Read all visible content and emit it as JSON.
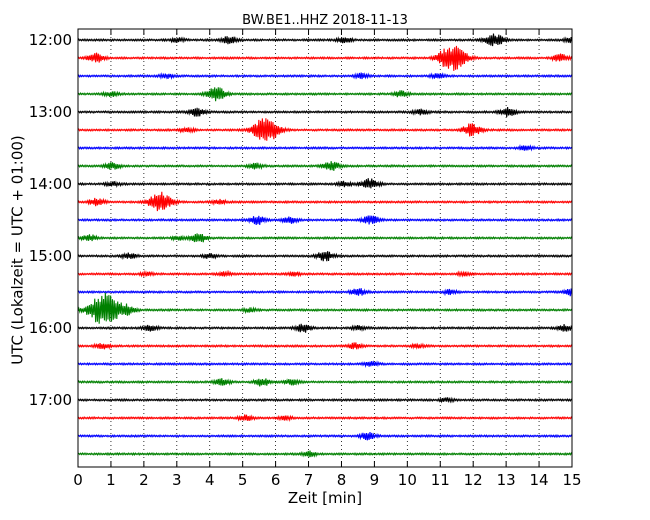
{
  "chart_data": {
    "type": "line",
    "title": "BW.BE1..HHZ 2018-11-13",
    "xlabel": "Zeit  [min]",
    "ylabel": "UTC (Lokalzeit = UTC + 01:00)",
    "xlim": [
      0,
      15
    ],
    "x_ticks": [
      "0",
      "1",
      "2",
      "3",
      "4",
      "5",
      "6",
      "7",
      "8",
      "9",
      "10",
      "11",
      "12",
      "13",
      "14",
      "15"
    ],
    "y_tick_labels": [
      "12:00",
      "13:00",
      "14:00",
      "15:00",
      "16:00",
      "17:00"
    ],
    "grid": "vertical dotted",
    "trace_interval_minutes": 15,
    "color_cycle": [
      "#000000",
      "#ff0000",
      "#0000ff",
      "#008000"
    ],
    "traces": [
      {
        "start": "12:00",
        "events": [
          [
            3.0,
            0.25
          ],
          [
            4.6,
            0.4
          ],
          [
            8.1,
            0.3
          ],
          [
            12.65,
            0.7
          ],
          [
            15.0,
            0.3
          ]
        ]
      },
      {
        "start": "12:15",
        "events": [
          [
            0.55,
            0.5
          ],
          [
            11.45,
            1.3
          ],
          [
            11.1,
            0.5
          ],
          [
            14.65,
            0.4
          ]
        ]
      },
      {
        "start": "12:30",
        "events": [
          [
            2.7,
            0.25
          ],
          [
            8.6,
            0.3
          ],
          [
            10.9,
            0.25
          ]
        ]
      },
      {
        "start": "12:45",
        "events": [
          [
            4.2,
            0.75
          ],
          [
            9.8,
            0.35
          ],
          [
            1.0,
            0.25
          ]
        ]
      },
      {
        "start": "13:00",
        "events": [
          [
            3.6,
            0.45
          ],
          [
            10.4,
            0.3
          ],
          [
            13.05,
            0.5
          ]
        ]
      },
      {
        "start": "13:15",
        "events": [
          [
            5.7,
            1.45
          ],
          [
            11.95,
            0.7
          ],
          [
            3.3,
            0.25
          ]
        ]
      },
      {
        "start": "13:30",
        "events": [
          [
            13.6,
            0.3
          ]
        ]
      },
      {
        "start": "13:45",
        "events": [
          [
            7.7,
            0.5
          ],
          [
            1.05,
            0.35
          ],
          [
            5.4,
            0.3
          ]
        ]
      },
      {
        "start": "14:00",
        "events": [
          [
            8.85,
            0.6
          ],
          [
            8.1,
            0.3
          ],
          [
            1.05,
            0.25
          ]
        ]
      },
      {
        "start": "14:15",
        "events": [
          [
            2.5,
            1.1
          ],
          [
            0.55,
            0.4
          ],
          [
            4.3,
            0.25
          ]
        ]
      },
      {
        "start": "14:30",
        "events": [
          [
            5.45,
            0.5
          ],
          [
            6.45,
            0.35
          ],
          [
            8.8,
            0.3
          ],
          [
            9.0,
            0.25
          ]
        ]
      },
      {
        "start": "14:45",
        "events": [
          [
            3.65,
            0.55
          ],
          [
            0.35,
            0.35
          ],
          [
            3.05,
            0.2
          ]
        ]
      },
      {
        "start": "15:00",
        "events": [
          [
            7.5,
            0.55
          ],
          [
            1.55,
            0.3
          ],
          [
            4.0,
            0.25
          ]
        ]
      },
      {
        "start": "15:15",
        "events": [
          [
            2.1,
            0.2
          ],
          [
            4.45,
            0.2
          ],
          [
            6.6,
            0.2
          ],
          [
            11.7,
            0.2
          ]
        ]
      },
      {
        "start": "15:30",
        "events": [
          [
            8.5,
            0.4
          ],
          [
            15.0,
            0.4
          ],
          [
            11.3,
            0.25
          ]
        ]
      },
      {
        "start": "15:45",
        "events": [
          [
            0.8,
            1.9
          ],
          [
            1.5,
            0.5
          ],
          [
            5.2,
            0.2
          ]
        ]
      },
      {
        "start": "16:00",
        "events": [
          [
            6.85,
            0.45
          ],
          [
            2.2,
            0.3
          ],
          [
            8.55,
            0.25
          ],
          [
            14.8,
            0.35
          ]
        ]
      },
      {
        "start": "16:15",
        "events": [
          [
            0.75,
            0.3
          ],
          [
            8.4,
            0.3
          ],
          [
            10.3,
            0.2
          ]
        ]
      },
      {
        "start": "16:30",
        "events": [
          [
            8.9,
            0.25
          ]
        ]
      },
      {
        "start": "16:45",
        "events": [
          [
            5.6,
            0.45
          ],
          [
            4.35,
            0.4
          ],
          [
            6.5,
            0.3
          ]
        ]
      },
      {
        "start": "17:00",
        "events": [
          [
            11.2,
            0.2
          ]
        ]
      },
      {
        "start": "17:15",
        "events": [
          [
            5.1,
            0.3
          ],
          [
            6.3,
            0.2
          ]
        ]
      },
      {
        "start": "17:30",
        "events": [
          [
            8.8,
            0.4
          ]
        ]
      },
      {
        "start": "17:45",
        "events": [
          [
            7.0,
            0.3
          ]
        ]
      }
    ]
  }
}
